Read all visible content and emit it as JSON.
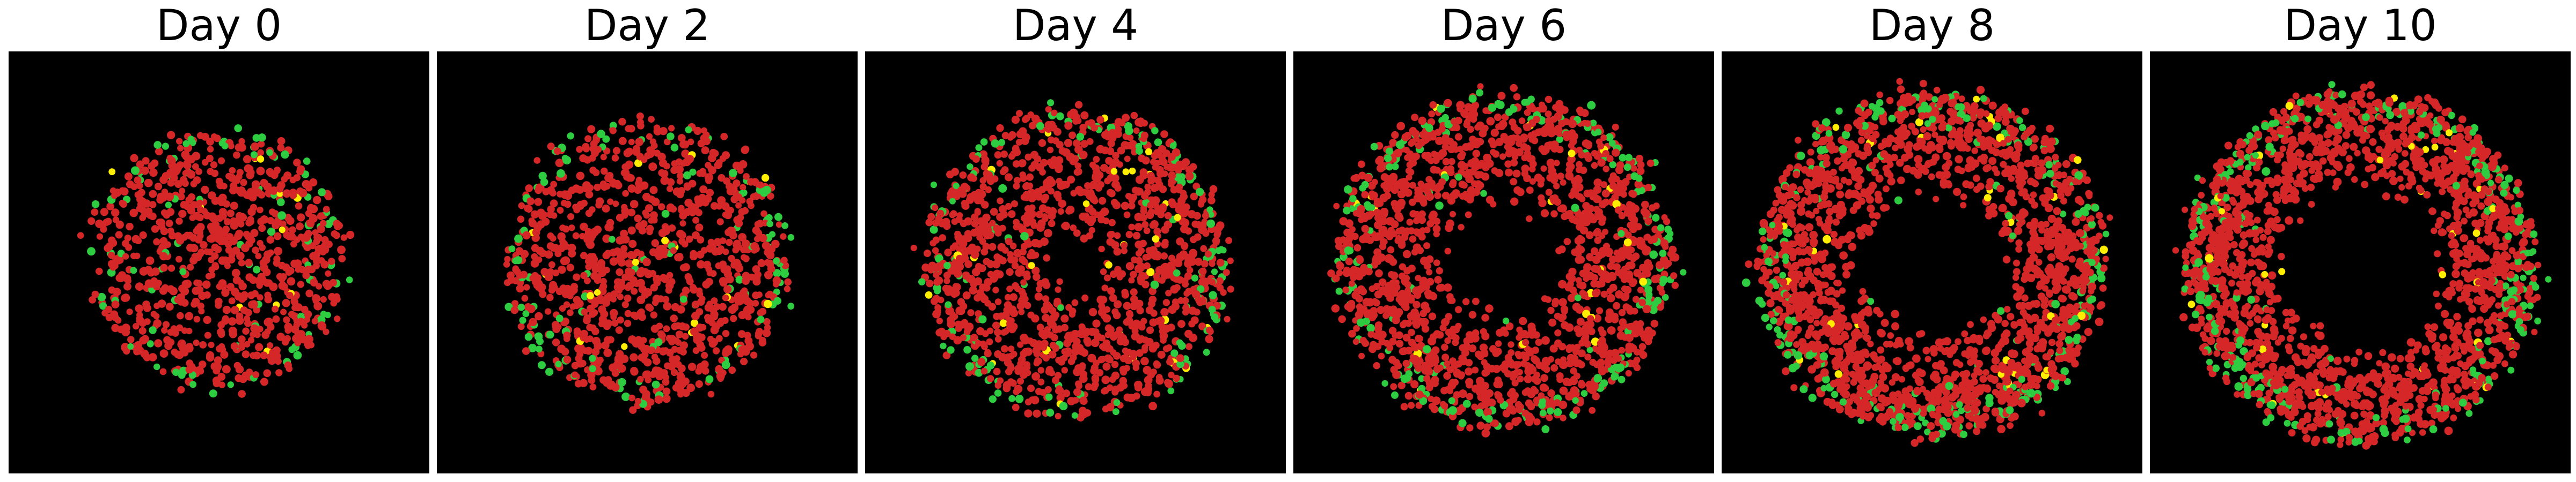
{
  "colors": {
    "background": "#000000",
    "cell_red": "#d62728",
    "cell_green": "#2ecc40",
    "cell_yellow": "#ffee00"
  },
  "panels": [
    {
      "title": "Day 0"
    },
    {
      "title": "Day 2"
    },
    {
      "title": "Day 4"
    },
    {
      "title": "Day 6"
    },
    {
      "title": "Day 8"
    },
    {
      "title": "Day 10"
    }
  ]
}
